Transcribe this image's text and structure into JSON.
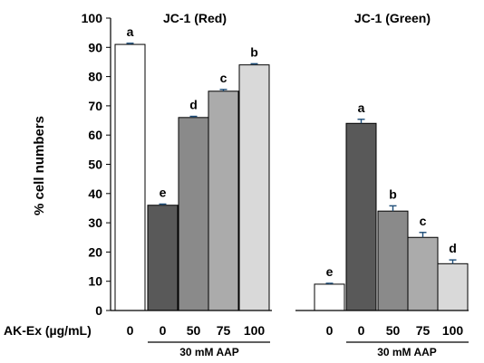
{
  "chart_data": {
    "type": "bar",
    "ylabel": "% cell numbers",
    "ylim": [
      0,
      100
    ],
    "yticks": [
      0,
      10,
      20,
      30,
      40,
      50,
      60,
      70,
      80,
      90,
      100
    ],
    "x_axis_title": "AK-Ex (µg/mL)",
    "bar_colors": [
      "#ffffff",
      "#595959",
      "#8a8a8a",
      "#ababab",
      "#d9d9d9"
    ],
    "error_color": "#1f4e79",
    "groups": [
      {
        "title": "JC-1 (Red)",
        "treatment_label": "30 mM AAP",
        "categories": [
          "0",
          "0",
          "50",
          "75",
          "100"
        ],
        "values": [
          91,
          36,
          66,
          75,
          84
        ],
        "errors": [
          0.4,
          0.4,
          0.4,
          0.6,
          0.4
        ],
        "letters": [
          "a",
          "e",
          "d",
          "c",
          "b"
        ]
      },
      {
        "title": "JC-1 (Green)",
        "treatment_label": "30 mM AAP",
        "categories": [
          "0",
          "0",
          "50",
          "75",
          "100"
        ],
        "values": [
          9,
          64,
          34,
          25,
          16
        ],
        "errors": [
          0.3,
          1.4,
          1.8,
          1.7,
          1.3
        ],
        "letters": [
          "e",
          "a",
          "b",
          "c",
          "d"
        ]
      }
    ]
  }
}
